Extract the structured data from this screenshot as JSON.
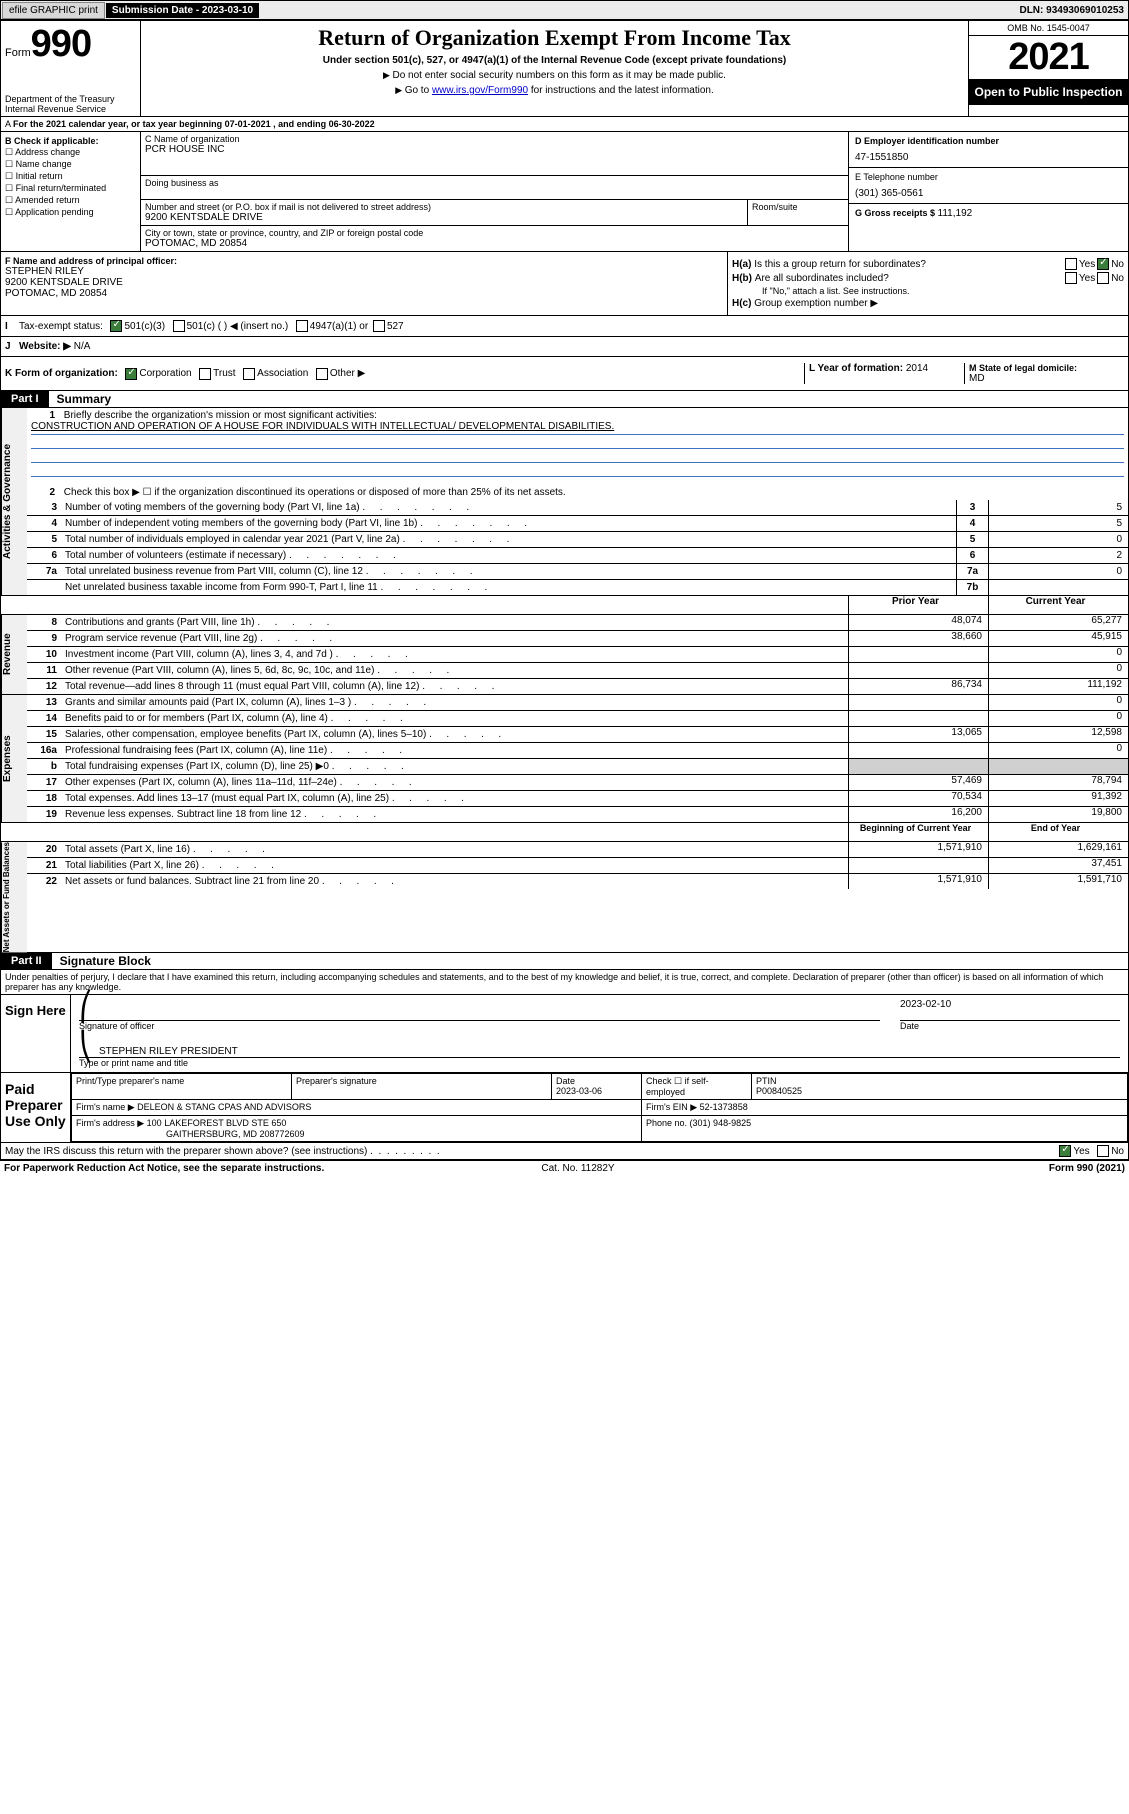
{
  "topbar": {
    "efile": "efile GRAPHIC print",
    "submission_label": "Submission Date - 2023-03-10",
    "dln": "DLN: 93493069010253"
  },
  "header": {
    "form_word": "Form",
    "form_num": "990",
    "dept": "Department of the Treasury",
    "irs": "Internal Revenue Service",
    "title": "Return of Organization Exempt From Income Tax",
    "subtitle": "Under section 501(c), 527, or 4947(a)(1) of the Internal Revenue Code (except private foundations)",
    "note1": "Do not enter social security numbers on this form as it may be made public.",
    "note2_prefix": "Go to ",
    "note2_link": "www.irs.gov/Form990",
    "note2_suffix": " for instructions and the latest information.",
    "omb": "OMB No. 1545-0047",
    "year": "2021",
    "open_public": "Open to Public Inspection"
  },
  "lineA": "For the 2021 calendar year, or tax year beginning 07-01-2021   , and ending 06-30-2022",
  "boxB": {
    "label": "B Check if applicable:",
    "opts": [
      "Address change",
      "Name change",
      "Initial return",
      "Final return/terminated",
      "Amended return",
      "Application pending"
    ]
  },
  "org": {
    "name_label": "C Name of organization",
    "name": "PCR HOUSE INC",
    "dba_label": "Doing business as",
    "dba": "",
    "street_label": "Number and street (or P.O. box if mail is not delivered to street address)",
    "street": "9200 KENTSDALE DRIVE",
    "room_label": "Room/suite",
    "city_label": "City or town, state or province, country, and ZIP or foreign postal code",
    "city": "POTOMAC, MD  20854"
  },
  "right": {
    "ein_label": "D Employer identification number",
    "ein": "47-1551850",
    "phone_label": "E Telephone number",
    "phone": "(301) 365-0561",
    "gross_label": "G Gross receipts $ ",
    "gross": "111,192"
  },
  "F": {
    "label": "F  Name and address of principal officer:",
    "name": "STEPHEN RILEY",
    "addr1": "9200 KENTSDALE DRIVE",
    "addr2": "POTOMAC, MD  20854"
  },
  "H": {
    "a_label": "Is this a group return for subordinates?",
    "a_yes": "Yes",
    "a_no": "No",
    "b_label": "Are all subordinates included?",
    "b_note": "If \"No,\" attach a list. See instructions.",
    "c_label": "Group exemption number ▶"
  },
  "I": {
    "label": "Tax-exempt status:",
    "opt1": "501(c)(3)",
    "opt2": "501(c) (  ) ◀ (insert no.)",
    "opt3": "4947(a)(1) or",
    "opt4": "527"
  },
  "J": {
    "label": "Website: ▶",
    "value": "N/A"
  },
  "K": {
    "label": "K Form of organization:",
    "opts": [
      "Corporation",
      "Trust",
      "Association",
      "Other ▶"
    ],
    "L_label": "L Year of formation: ",
    "L_val": "2014",
    "M_label": "M State of legal domicile:",
    "M_val": "MD"
  },
  "partI": {
    "label": "Part I",
    "title": "Summary",
    "mission_label": "Briefly describe the organization's mission or most significant activities:",
    "mission": "CONSTRUCTION AND OPERATION OF A HOUSE FOR INDIVIDUALS WITH INTELLECTUAL/ DEVELOPMENTAL DISABILITIES.",
    "line2": "Check this box ▶ ☐  if the organization discontinued its operations or disposed of more than 25% of its net assets.",
    "sideA": "Activities & Governance",
    "sideR": "Revenue",
    "sideE": "Expenses",
    "sideN": "Net Assets or Fund Balances",
    "gov_rows": [
      {
        "n": "3",
        "t": "Number of voting members of the governing body (Part VI, line 1a)",
        "box": "3",
        "v": "5"
      },
      {
        "n": "4",
        "t": "Number of independent voting members of the governing body (Part VI, line 1b)",
        "box": "4",
        "v": "5"
      },
      {
        "n": "5",
        "t": "Total number of individuals employed in calendar year 2021 (Part V, line 2a)",
        "box": "5",
        "v": "0"
      },
      {
        "n": "6",
        "t": "Total number of volunteers (estimate if necessary)",
        "box": "6",
        "v": "2"
      },
      {
        "n": "7a",
        "t": "Total unrelated business revenue from Part VIII, column (C), line 12",
        "box": "7a",
        "v": "0"
      },
      {
        "n": "",
        "t": "Net unrelated business taxable income from Form 990-T, Part I, line 11",
        "box": "7b",
        "v": ""
      }
    ],
    "col_head_prior": "Prior Year",
    "col_head_curr": "Current Year",
    "rev_rows": [
      {
        "n": "8",
        "t": "Contributions and grants (Part VIII, line 1h)",
        "p": "48,074",
        "c": "65,277"
      },
      {
        "n": "9",
        "t": "Program service revenue (Part VIII, line 2g)",
        "p": "38,660",
        "c": "45,915"
      },
      {
        "n": "10",
        "t": "Investment income (Part VIII, column (A), lines 3, 4, and 7d )",
        "p": "",
        "c": "0"
      },
      {
        "n": "11",
        "t": "Other revenue (Part VIII, column (A), lines 5, 6d, 8c, 9c, 10c, and 11e)",
        "p": "",
        "c": "0"
      },
      {
        "n": "12",
        "t": "Total revenue—add lines 8 through 11 (must equal Part VIII, column (A), line 12)",
        "p": "86,734",
        "c": "111,192"
      }
    ],
    "exp_rows": [
      {
        "n": "13",
        "t": "Grants and similar amounts paid (Part IX, column (A), lines 1–3 )",
        "p": "",
        "c": "0"
      },
      {
        "n": "14",
        "t": "Benefits paid to or for members (Part IX, column (A), line 4)",
        "p": "",
        "c": "0"
      },
      {
        "n": "15",
        "t": "Salaries, other compensation, employee benefits (Part IX, column (A), lines 5–10)",
        "p": "13,065",
        "c": "12,598"
      },
      {
        "n": "16a",
        "t": "Professional fundraising fees (Part IX, column (A), line 11e)",
        "p": "",
        "c": "0"
      },
      {
        "n": "b",
        "t": "Total fundraising expenses (Part IX, column (D), line 25) ▶0",
        "p": "SHADE",
        "c": "SHADE"
      },
      {
        "n": "17",
        "t": "Other expenses (Part IX, column (A), lines 11a–11d, 11f–24e)",
        "p": "57,469",
        "c": "78,794"
      },
      {
        "n": "18",
        "t": "Total expenses. Add lines 13–17 (must equal Part IX, column (A), line 25)",
        "p": "70,534",
        "c": "91,392"
      },
      {
        "n": "19",
        "t": "Revenue less expenses. Subtract line 18 from line 12",
        "p": "16,200",
        "c": "19,800"
      }
    ],
    "na_head_begin": "Beginning of Current Year",
    "na_head_end": "End of Year",
    "na_rows": [
      {
        "n": "20",
        "t": "Total assets (Part X, line 16)",
        "p": "1,571,910",
        "c": "1,629,161"
      },
      {
        "n": "21",
        "t": "Total liabilities (Part X, line 26)",
        "p": "",
        "c": "37,451"
      },
      {
        "n": "22",
        "t": "Net assets or fund balances. Subtract line 21 from line 20",
        "p": "1,571,910",
        "c": "1,591,710"
      }
    ]
  },
  "partII": {
    "label": "Part II",
    "title": "Signature Block",
    "jurat": "Under penalties of perjury, I declare that I have examined this return, including accompanying schedules and statements, and to the best of my knowledge and belief, it is true, correct, and complete. Declaration of preparer (other than officer) is based on all information of which preparer has any knowledge.",
    "sign_here": "Sign Here",
    "sig_officer": "Signature of officer",
    "sig_date_label": "Date",
    "sig_date": "2023-02-10",
    "officer_name": "STEPHEN RILEY PRESIDENT",
    "officer_sub": "Type or print name and title",
    "paid": "Paid Preparer Use Only",
    "prep_name_label": "Print/Type preparer's name",
    "prep_sig_label": "Preparer's signature",
    "prep_date_label": "Date",
    "prep_date": "2023-03-06",
    "prep_check": "Check ☐ if self-employed",
    "ptin_label": "PTIN",
    "ptin": "P00840525",
    "firm_name_label": "Firm's name    ▶",
    "firm_name": "DELEON & STANG CPAS AND ADVISORS",
    "firm_ein_label": "Firm's EIN ▶",
    "firm_ein": "52-1373858",
    "firm_addr_label": "Firm's address ▶",
    "firm_addr1": "100 LAKEFOREST BLVD STE 650",
    "firm_addr2": "GAITHERSBURG, MD  208772609",
    "firm_phone_label": "Phone no. ",
    "firm_phone": "(301) 948-9825",
    "may_irs": "May the IRS discuss this return with the preparer shown above? (see instructions)",
    "yes": "Yes",
    "no": "No"
  },
  "footer": {
    "pra": "For Paperwork Reduction Act Notice, see the separate instructions.",
    "cat": "Cat. No. 11282Y",
    "form": "Form 990 (2021)"
  },
  "colors": {
    "link": "#0000cc",
    "rule_blue": "#4070c0",
    "check_green": "#3b7d3b",
    "shade": "#d0d0d0"
  }
}
